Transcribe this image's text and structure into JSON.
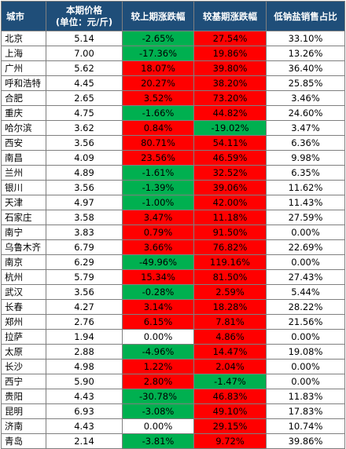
{
  "headers": {
    "city": "城市",
    "price_line1": "本期价格",
    "price_line2": "(单位：元/斤)",
    "mom": "较上期涨跌幅",
    "yoy": "较基期涨跌幅",
    "share": "低钠盐销售占比"
  },
  "colors": {
    "header_bg": "#1f4e79",
    "up": "#ff0000",
    "down": "#00b050",
    "flat": "#ffffff"
  },
  "rows": [
    {
      "city": "北京",
      "price": "5.14",
      "mom": "-2.65%",
      "yoy": "27.54%",
      "share": "33.10%"
    },
    {
      "city": "上海",
      "price": "7.00",
      "mom": "-17.36%",
      "yoy": "19.86%",
      "share": "13.26%"
    },
    {
      "city": "广州",
      "price": "5.62",
      "mom": "18.07%",
      "yoy": "39.80%",
      "share": "36.40%"
    },
    {
      "city": "呼和浩特",
      "price": "4.45",
      "mom": "20.27%",
      "yoy": "38.20%",
      "share": "25.85%"
    },
    {
      "city": "合肥",
      "price": "2.65",
      "mom": "3.52%",
      "yoy": "73.20%",
      "share": "3.46%"
    },
    {
      "city": "重庆",
      "price": "4.75",
      "mom": "-1.66%",
      "yoy": "44.82%",
      "share": "24.60%"
    },
    {
      "city": "哈尔滨",
      "price": "3.62",
      "mom": "0.84%",
      "yoy": "-19.02%",
      "share": "3.47%"
    },
    {
      "city": "西安",
      "price": "3.56",
      "mom": "80.71%",
      "yoy": "54.11%",
      "share": "6.36%"
    },
    {
      "city": "南昌",
      "price": "4.09",
      "mom": "23.56%",
      "yoy": "46.59%",
      "share": "9.98%"
    },
    {
      "city": "兰州",
      "price": "4.89",
      "mom": "-1.61%",
      "yoy": "32.52%",
      "share": "6.35%"
    },
    {
      "city": "银川",
      "price": "3.56",
      "mom": "-1.39%",
      "yoy": "39.06%",
      "share": "11.62%"
    },
    {
      "city": "天津",
      "price": "4.97",
      "mom": "-1.00%",
      "yoy": "42.00%",
      "share": "11.43%"
    },
    {
      "city": "石家庄",
      "price": "3.58",
      "mom": "3.47%",
      "yoy": "11.18%",
      "share": "27.59%"
    },
    {
      "city": "南宁",
      "price": "3.83",
      "mom": "0.79%",
      "yoy": "91.50%",
      "share": "0.00%"
    },
    {
      "city": "乌鲁木齐",
      "price": "6.79",
      "mom": "3.66%",
      "yoy": "76.82%",
      "share": "22.69%"
    },
    {
      "city": "南京",
      "price": "6.29",
      "mom": "-49.96%",
      "yoy": "119.16%",
      "share": "0.00%"
    },
    {
      "city": "杭州",
      "price": "5.79",
      "mom": "15.34%",
      "yoy": "81.50%",
      "share": "27.43%"
    },
    {
      "city": "武汉",
      "price": "3.56",
      "mom": "-0.28%",
      "yoy": "2.59%",
      "share": "5.44%"
    },
    {
      "city": "长春",
      "price": "4.27",
      "mom": "3.14%",
      "yoy": "18.28%",
      "share": "28.22%"
    },
    {
      "city": "郑州",
      "price": "2.76",
      "mom": "6.15%",
      "yoy": "7.81%",
      "share": "21.56%"
    },
    {
      "city": "拉萨",
      "price": "1.94",
      "mom": "0.00%",
      "yoy": "4.86%",
      "share": "0.00%"
    },
    {
      "city": "太原",
      "price": "2.88",
      "mom": "-4.96%",
      "yoy": "14.47%",
      "share": "19.08%"
    },
    {
      "city": "长沙",
      "price": "4.98",
      "mom": "1.22%",
      "yoy": "2.04%",
      "share": "0.00%"
    },
    {
      "city": "西宁",
      "price": "5.90",
      "mom": "2.80%",
      "yoy": "-1.47%",
      "share": "0.00%"
    },
    {
      "city": "贵阳",
      "price": "4.43",
      "mom": "-30.78%",
      "yoy": "46.83%",
      "share": "11.83%"
    },
    {
      "city": "昆明",
      "price": "6.93",
      "mom": "-3.08%",
      "yoy": "49.10%",
      "share": "17.83%"
    },
    {
      "city": "济南",
      "price": "4.43",
      "mom": "0.00%",
      "yoy": "29.15%",
      "share": "10.74%"
    },
    {
      "city": "青岛",
      "price": "2.14",
      "mom": "-3.81%",
      "yoy": "9.72%",
      "share": "39.86%"
    }
  ]
}
